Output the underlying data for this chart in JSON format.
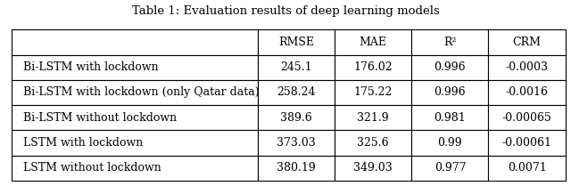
{
  "title": "Table 1: Evaluation results of deep learning models",
  "col_headers": [
    "RMSE",
    "MAE",
    "R²",
    "CRM"
  ],
  "rows": [
    [
      "Bi-LSTM with lockdown",
      "245.1",
      "176.02",
      "0.996",
      "-0.0003"
    ],
    [
      "Bi-LSTM with lockdown (only Qatar data)",
      "258.24",
      "175.22",
      "0.996",
      "-0.0016"
    ],
    [
      "Bi-LSTM without lockdown",
      "389.6",
      "321.9",
      "0.981",
      "-0.00065"
    ],
    [
      "LSTM with lockdown",
      "373.03",
      "325.6",
      "0.99",
      "-0.00061"
    ],
    [
      "LSTM without lockdown",
      "380.19",
      "349.03",
      "0.977",
      "0.0071"
    ]
  ],
  "background_color": "#ffffff",
  "line_color": "#000000",
  "text_color": "#000000",
  "title_fontsize": 9.5,
  "cell_fontsize": 9.0
}
